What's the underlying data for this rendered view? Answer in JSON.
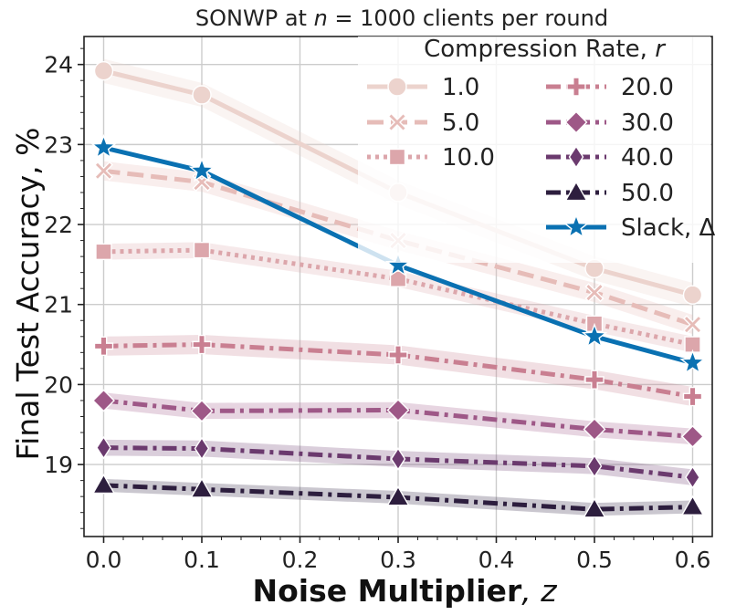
{
  "chart_data": {
    "type": "line",
    "title_prefix": "SONWP at ",
    "title_var": "n",
    "title_suffix": " = 1000 clients per round",
    "xlabel_bold": "Noise Multiplier",
    "xlabel_var": ", z",
    "ylabel": "Final Test Accuracy, %",
    "x": [
      0.0,
      0.1,
      0.3,
      0.5,
      0.6
    ],
    "xticks": [
      "0.0",
      "0.1",
      "0.2",
      "0.3",
      "0.4",
      "0.5",
      "0.6"
    ],
    "yticks": [
      "19",
      "20",
      "21",
      "22",
      "23",
      "24"
    ],
    "xlim": [
      -0.02,
      0.62
    ],
    "ylim": [
      18.1,
      24.35
    ],
    "grid": true,
    "legend_position": "top-right",
    "legend_title": "Compression Rate, r",
    "series": [
      {
        "name": "1.0",
        "values": [
          23.92,
          23.62,
          22.4,
          21.45,
          21.12
        ],
        "color": "#ecd3cd",
        "dash": "solid",
        "marker": "circle",
        "band": 0.15
      },
      {
        "name": "5.0",
        "values": [
          22.67,
          22.53,
          21.8,
          21.15,
          20.75
        ],
        "color": "#e6bcb8",
        "dash": "dashed",
        "marker": "x",
        "band": 0.12
      },
      {
        "name": "10.0",
        "values": [
          21.66,
          21.68,
          21.32,
          20.76,
          20.5
        ],
        "color": "#dca6ab",
        "dash": "dotted",
        "marker": "square",
        "band": 0.1
      },
      {
        "name": "20.0",
        "values": [
          20.48,
          20.5,
          20.37,
          20.06,
          19.85
        ],
        "color": "#c97f91",
        "dash": "dashdot",
        "marker": "plus",
        "band": 0.12
      },
      {
        "name": "30.0",
        "values": [
          19.8,
          19.67,
          19.68,
          19.44,
          19.35
        ],
        "color": "#9e5887",
        "dash": "dashdot",
        "marker": "diamond",
        "band": 0.1
      },
      {
        "name": "40.0",
        "values": [
          19.21,
          19.2,
          19.07,
          18.98,
          18.84
        ],
        "color": "#6b3a6e",
        "dash": "dashdot",
        "marker": "thin-diamond",
        "band": 0.1
      },
      {
        "name": "50.0",
        "values": [
          18.74,
          18.69,
          18.59,
          18.44,
          18.47
        ],
        "color": "#2d1e3e",
        "dash": "dashdot",
        "marker": "triangle",
        "band": 0.08
      },
      {
        "name": "Slack, Δ",
        "values": [
          22.96,
          22.67,
          21.49,
          20.6,
          20.27
        ],
        "color": "#0a71b2",
        "dash": "solid",
        "marker": "star",
        "band": 0
      }
    ]
  }
}
